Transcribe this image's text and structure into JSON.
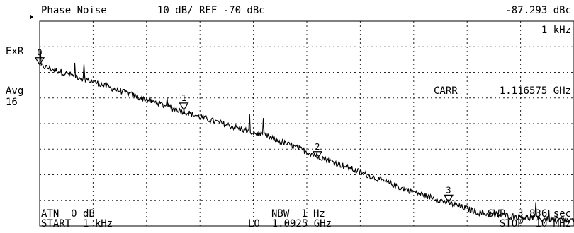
{
  "header": {
    "mode": "Phase Noise",
    "scale_ref": "10 dB/ REF -70 dBc",
    "marker_readout": "-87.293 dBc",
    "marker_freq": "1 kHz"
  },
  "left_panel": {
    "exr_label": "ExR",
    "avg_label": "Avg",
    "avg_count": "16"
  },
  "annotation": {
    "carr_label": "CARR",
    "carr_value": "1.116575 GHz"
  },
  "footer": {
    "atn": "ATN  0 dB",
    "start": "START  1 kHz",
    "nbw": "NBW  1 Hz",
    "lo": "LO  1.0925 GHz",
    "swp": "SWP  3.836 sec",
    "stop": "STOP  10 MHz"
  },
  "markers": [
    {
      "label": "0",
      "freq_hz": 1000,
      "level_dbc": -87.3
    },
    {
      "label": "1",
      "freq_hz": 12000,
      "level_dbc": -105
    },
    {
      "label": "2",
      "freq_hz": 120000,
      "level_dbc": -124
    },
    {
      "label": "3",
      "freq_hz": 1150000,
      "level_dbc": -141
    }
  ],
  "chart_data": {
    "type": "line",
    "title": "Phase Noise",
    "xlabel": "",
    "ylabel": "",
    "x_scale": "log",
    "xlim": [
      1000,
      10000000
    ],
    "ylim": [
      -150,
      -70
    ],
    "reference_level_dbc": -70,
    "scale_db_per_div": 10,
    "grid": true,
    "series": [
      {
        "x": [
          1000,
          2000,
          3000,
          5000,
          10000,
          20000,
          50000,
          100000,
          200000,
          500000,
          1000000,
          2000000,
          5000000,
          10000000
        ],
        "values": [
          -87.3,
          -92,
          -95,
          -99,
          -104,
          -109,
          -115,
          -121,
          -127,
          -135,
          -140,
          -145,
          -147,
          -148
        ]
      }
    ]
  }
}
